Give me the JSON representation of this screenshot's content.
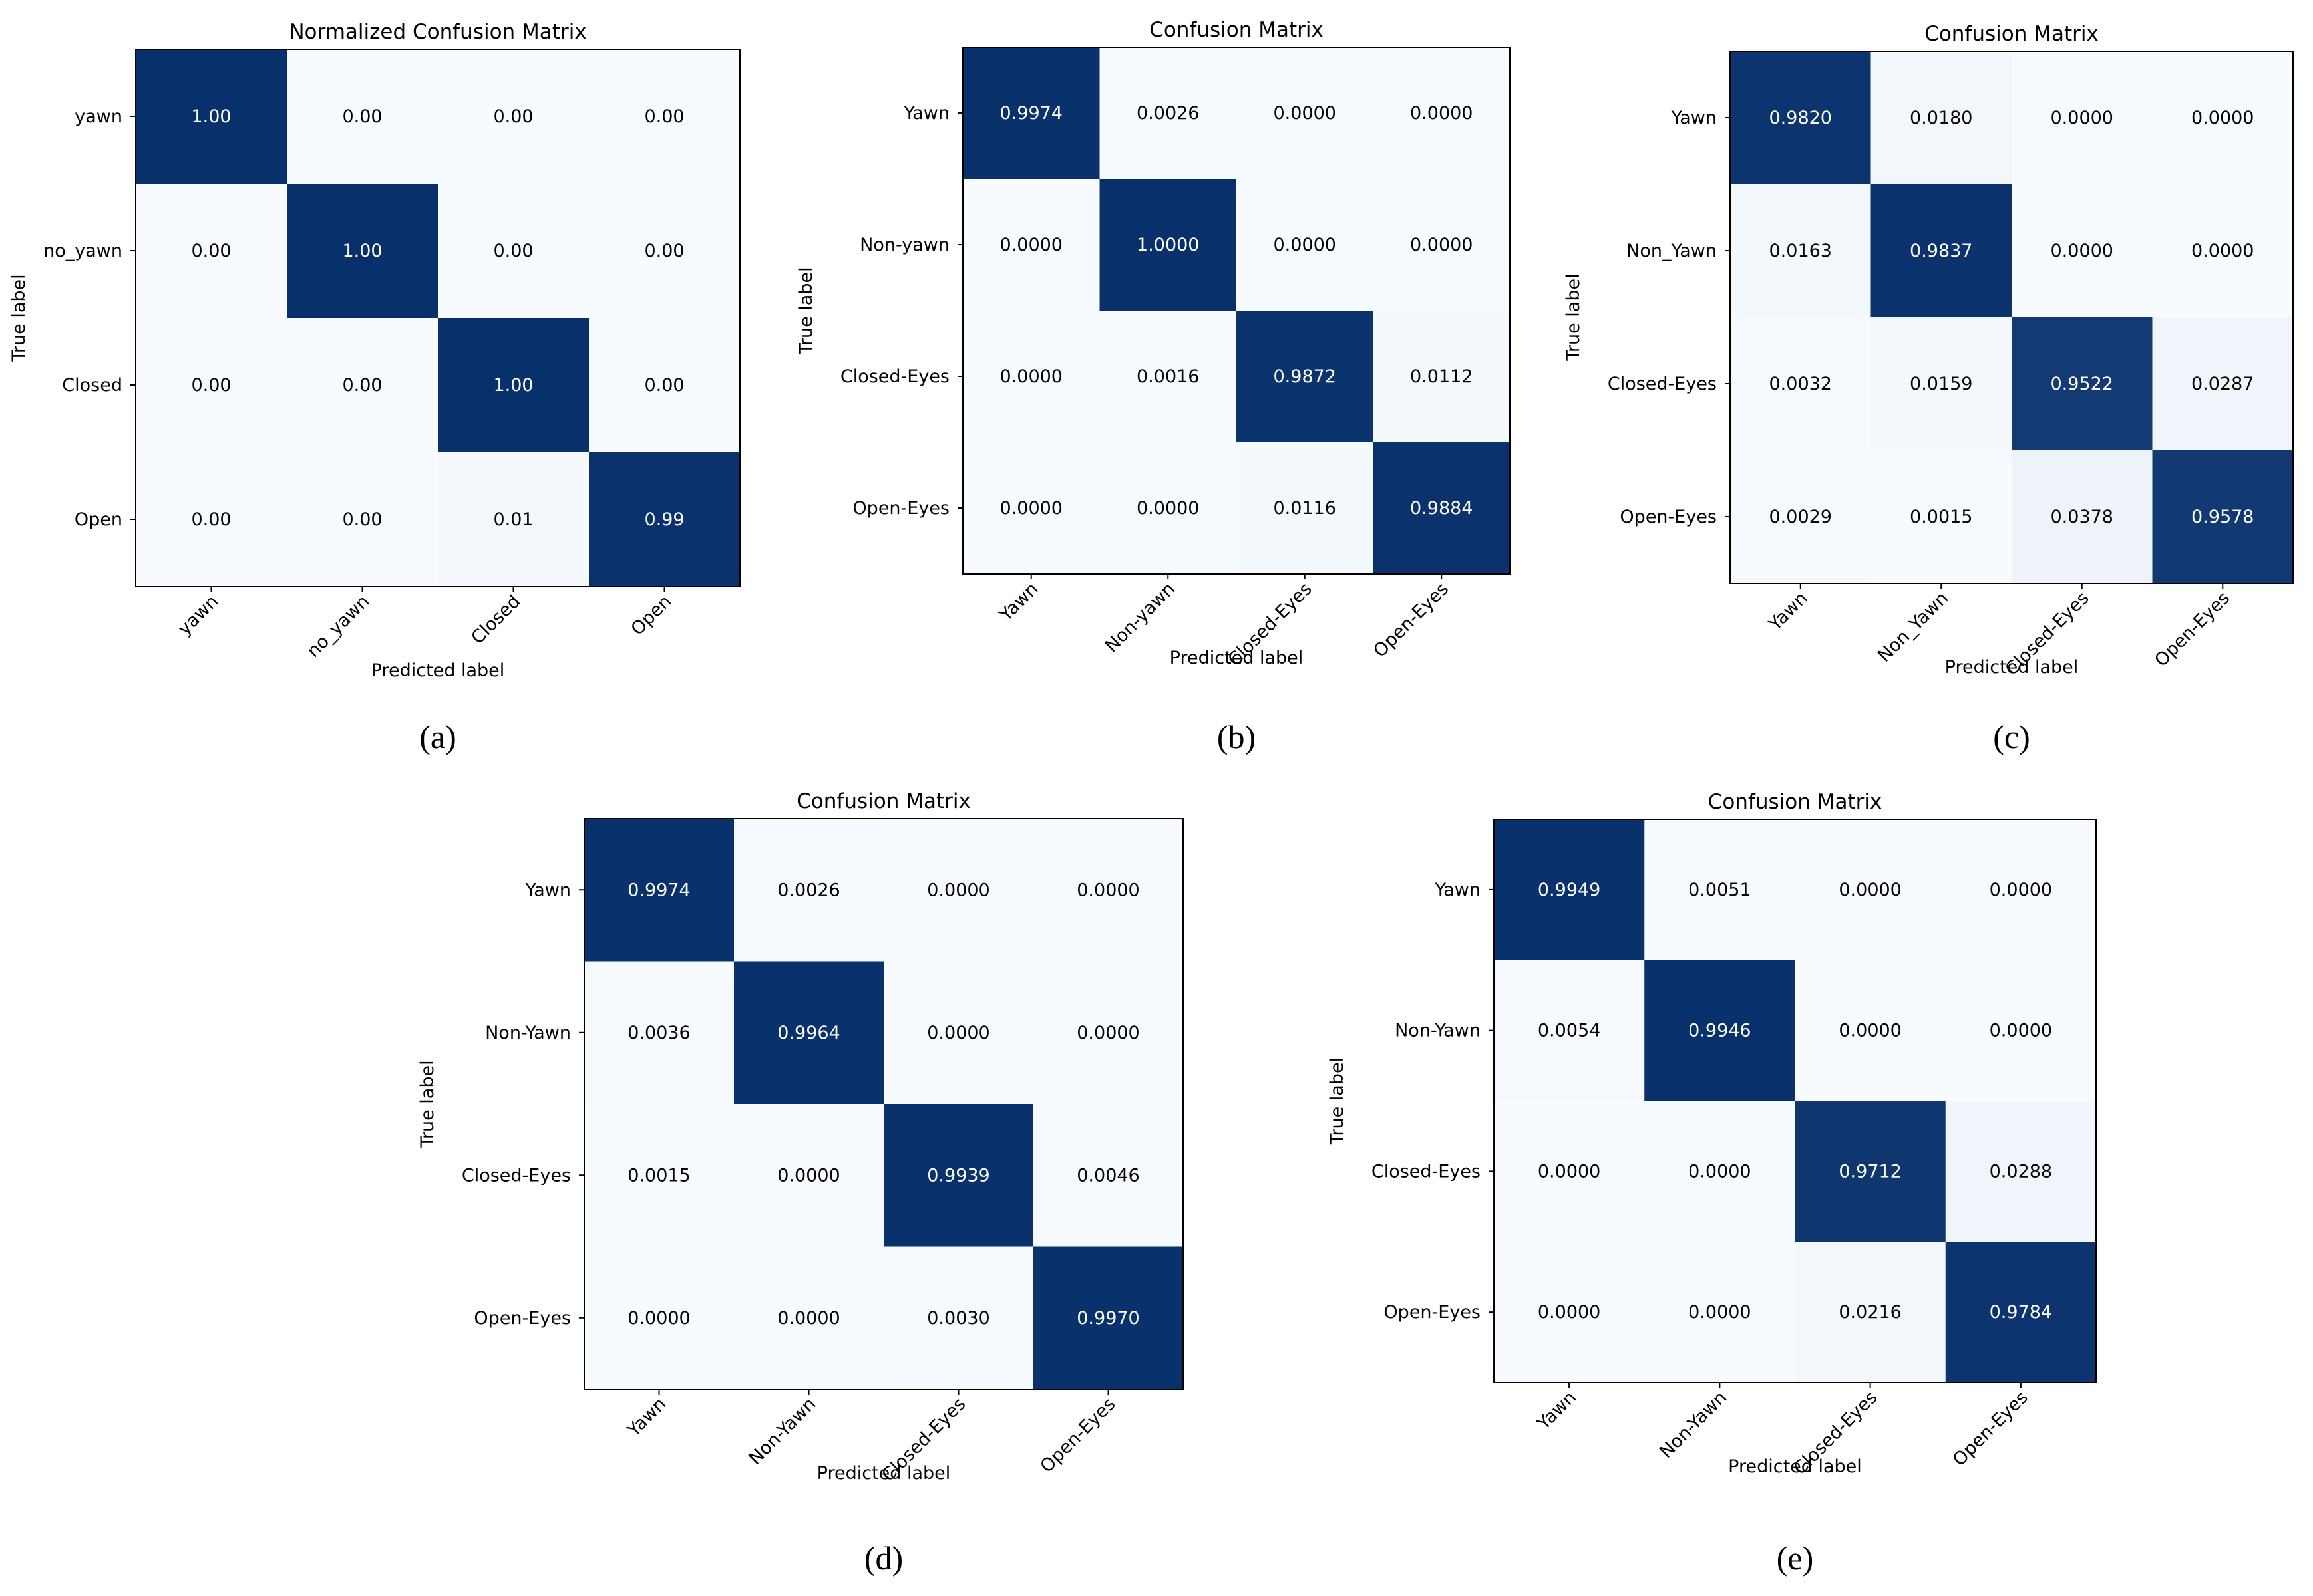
{
  "chart_data": [
    {
      "type": "heatmap",
      "panel": "(a)",
      "title": "Normalized Confusion Matrix",
      "xlabel": "Predicted label",
      "ylabel": "True label",
      "row_labels": [
        "yawn",
        "no_yawn",
        "Closed",
        "Open"
      ],
      "col_labels": [
        "yawn",
        "no_yawn",
        "Closed",
        "Open"
      ],
      "values": [
        [
          1.0,
          0.0,
          0.0,
          0.0
        ],
        [
          0.0,
          1.0,
          0.0,
          0.0
        ],
        [
          0.0,
          0.0,
          1.0,
          0.0
        ],
        [
          0.0,
          0.0,
          0.01,
          0.99
        ]
      ],
      "value_labels": [
        [
          "1.00",
          "0.00",
          "0.00",
          "0.00"
        ],
        [
          "0.00",
          "1.00",
          "0.00",
          "0.00"
        ],
        [
          "0.00",
          "0.00",
          "1.00",
          "0.00"
        ],
        [
          "0.00",
          "0.00",
          "0.01",
          "0.99"
        ]
      ]
    },
    {
      "type": "heatmap",
      "panel": "(b)",
      "title": "Confusion Matrix",
      "xlabel": "Predicted label",
      "ylabel": "True label",
      "row_labels": [
        "Yawn",
        "Non-yawn",
        "Closed-Eyes",
        "Open-Eyes"
      ],
      "col_labels": [
        "Yawn",
        "Non-yawn",
        "Closed-Eyes",
        "Open-Eyes"
      ],
      "values": [
        [
          0.9974,
          0.0026,
          0.0,
          0.0
        ],
        [
          0.0,
          1.0,
          0.0,
          0.0
        ],
        [
          0.0,
          0.0016,
          0.9872,
          0.0112
        ],
        [
          0.0,
          0.0,
          0.0116,
          0.9884
        ]
      ],
      "value_labels": [
        [
          "0.9974",
          "0.0026",
          "0.0000",
          "0.0000"
        ],
        [
          "0.0000",
          "1.0000",
          "0.0000",
          "0.0000"
        ],
        [
          "0.0000",
          "0.0016",
          "0.9872",
          "0.0112"
        ],
        [
          "0.0000",
          "0.0000",
          "0.0116",
          "0.9884"
        ]
      ]
    },
    {
      "type": "heatmap",
      "panel": "(c)",
      "title": "Confusion Matrix",
      "xlabel": "Predicted label",
      "ylabel": "True label",
      "row_labels": [
        "Yawn",
        "Non_Yawn",
        "Closed-Eyes",
        "Open-Eyes"
      ],
      "col_labels": [
        "Yawn",
        "Non_Yawn",
        "Closed-Eyes",
        "Open-Eyes"
      ],
      "values": [
        [
          0.982,
          0.018,
          0.0,
          0.0
        ],
        [
          0.0163,
          0.9837,
          0.0,
          0.0
        ],
        [
          0.0032,
          0.0159,
          0.9522,
          0.0287
        ],
        [
          0.0029,
          0.0015,
          0.0378,
          0.9578
        ]
      ],
      "value_labels": [
        [
          "0.9820",
          "0.0180",
          "0.0000",
          "0.0000"
        ],
        [
          "0.0163",
          "0.9837",
          "0.0000",
          "0.0000"
        ],
        [
          "0.0032",
          "0.0159",
          "0.9522",
          "0.0287"
        ],
        [
          "0.0029",
          "0.0015",
          "0.0378",
          "0.9578"
        ]
      ]
    },
    {
      "type": "heatmap",
      "panel": "(d)",
      "title": "Confusion Matrix",
      "xlabel": "Predicted label",
      "ylabel": "True label",
      "row_labels": [
        "Yawn",
        "Non-Yawn",
        "Closed-Eyes",
        "Open-Eyes"
      ],
      "col_labels": [
        "Yawn",
        "Non-Yawn",
        "Closed-Eyes",
        "Open-Eyes"
      ],
      "values": [
        [
          0.9974,
          0.0026,
          0.0,
          0.0
        ],
        [
          0.0036,
          0.9964,
          0.0,
          0.0
        ],
        [
          0.0015,
          0.0,
          0.9939,
          0.0046
        ],
        [
          0.0,
          0.0,
          0.003,
          0.997
        ]
      ],
      "value_labels": [
        [
          "0.9974",
          "0.0026",
          "0.0000",
          "0.0000"
        ],
        [
          "0.0036",
          "0.9964",
          "0.0000",
          "0.0000"
        ],
        [
          "0.0015",
          "0.0000",
          "0.9939",
          "0.0046"
        ],
        [
          "0.0000",
          "0.0000",
          "0.0030",
          "0.9970"
        ]
      ]
    },
    {
      "type": "heatmap",
      "panel": "(e)",
      "title": "Confusion Matrix",
      "xlabel": "Predicted label",
      "ylabel": "True label",
      "row_labels": [
        "Yawn",
        "Non-Yawn",
        "Closed-Eyes",
        "Open-Eyes"
      ],
      "col_labels": [
        "Yawn",
        "Non-Yawn",
        "Closed-Eyes",
        "Open-Eyes"
      ],
      "values": [
        [
          0.9949,
          0.0051,
          0.0,
          0.0
        ],
        [
          0.0054,
          0.9946,
          0.0,
          0.0
        ],
        [
          0.0,
          0.0,
          0.9712,
          0.0288
        ],
        [
          0.0,
          0.0,
          0.0216,
          0.9784
        ]
      ],
      "value_labels": [
        [
          "0.9949",
          "0.0051",
          "0.0000",
          "0.0000"
        ],
        [
          "0.0054",
          "0.9946",
          "0.0000",
          "0.0000"
        ],
        [
          "0.0000",
          "0.0000",
          "0.9712",
          "0.0288"
        ],
        [
          "0.0000",
          "0.0000",
          "0.0216",
          "0.9784"
        ]
      ]
    }
  ],
  "colormap": {
    "low": "#f7fbff",
    "high": "#08306b",
    "text_dark": "#000000",
    "text_light": "#ffffff"
  }
}
